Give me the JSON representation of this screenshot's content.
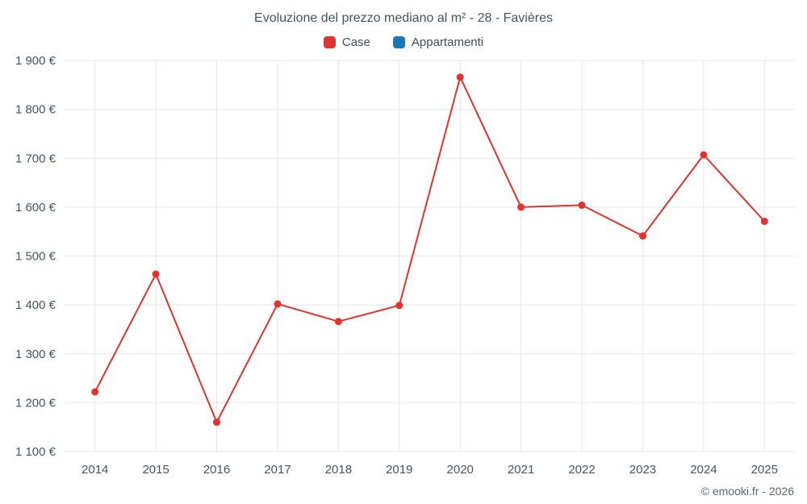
{
  "chart_data": {
    "type": "line",
    "title": "Evoluzione del prezzo mediano al m² - 28 - Favières",
    "categories": [
      "2014",
      "2015",
      "2016",
      "2017",
      "2018",
      "2019",
      "2020",
      "2021",
      "2022",
      "2023",
      "2024",
      "2025"
    ],
    "series": [
      {
        "name": "Case",
        "color": "#e1332f",
        "marker": "circle",
        "values": [
          1222,
          1463,
          1160,
          1402,
          1366,
          1399,
          1866,
          1600,
          1604,
          1541,
          1707,
          1571
        ]
      },
      {
        "name": "Appartamenti",
        "color": "#1779b5",
        "marker": "circle",
        "values": []
      }
    ],
    "ylim": [
      1100,
      1900
    ],
    "ytick_step": 100,
    "y_unit": "€",
    "xlabel": "",
    "ylabel": "",
    "grid": true,
    "legend_position": "top",
    "grid_color": "#e8e8e8",
    "axis_label_color": "#46555f"
  },
  "footer": {
    "copyright": "© emooki.fr - 2026"
  }
}
